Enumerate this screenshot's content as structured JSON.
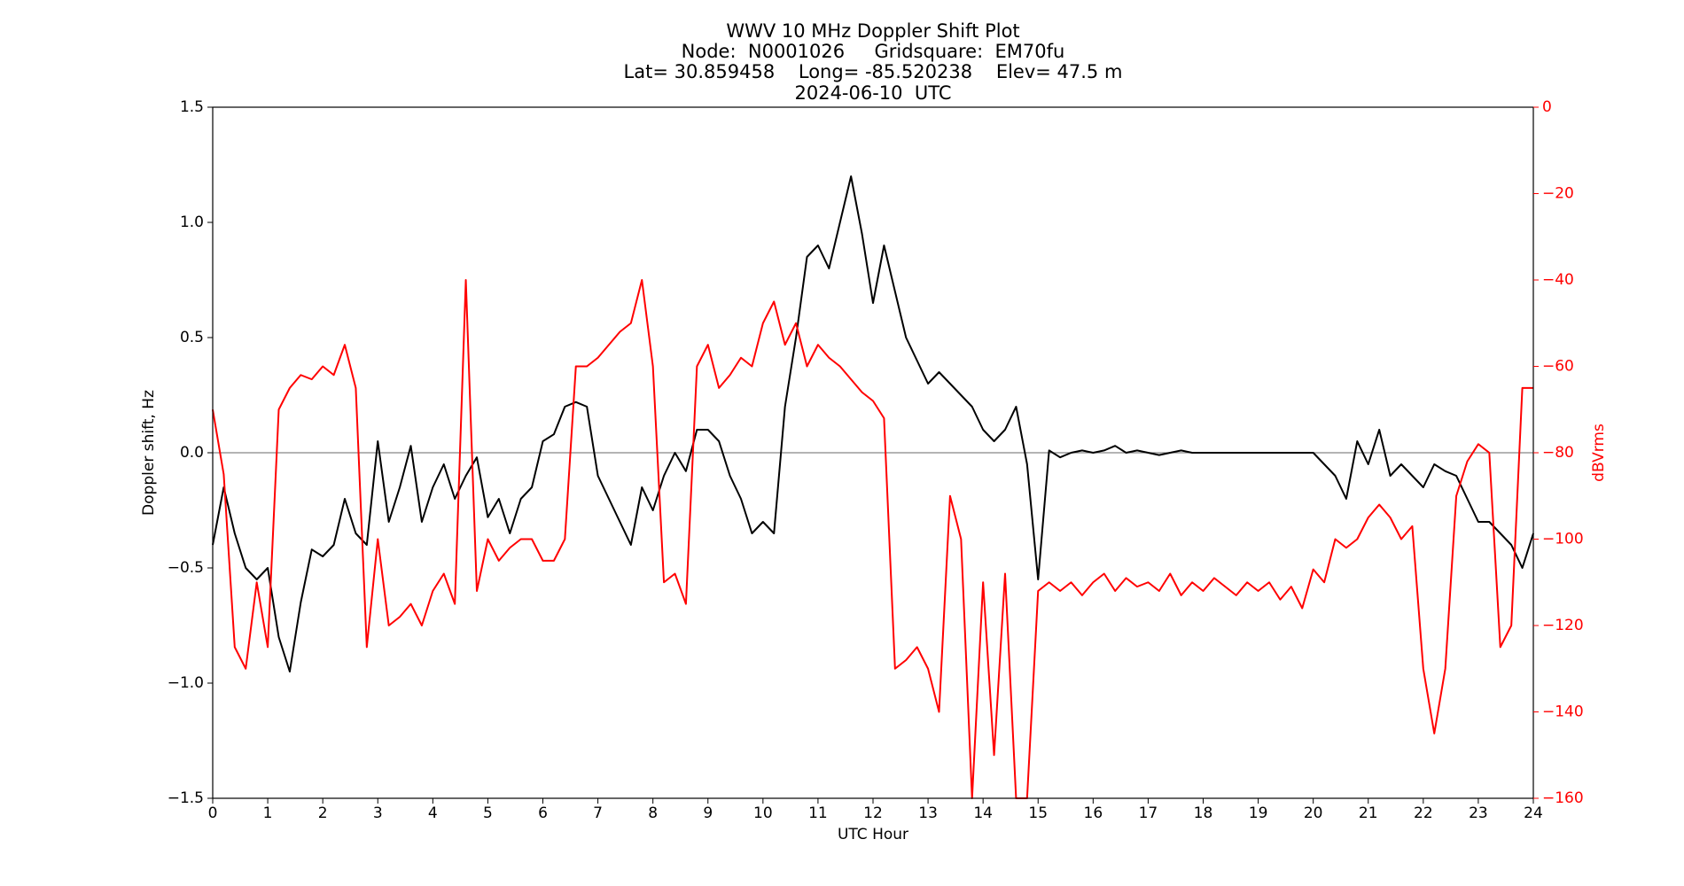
{
  "chart_data": {
    "type": "line",
    "title": "WWV 10 MHz Doppler Shift Plot",
    "subtitle": [
      "Node:  N0001026     Gridsquare:  EM70fu",
      "Lat= 30.859458    Long= -85.520238    Elev= 47.5 m",
      "2024-06-10  UTC"
    ],
    "xlabel": "UTC Hour",
    "ylabel": "Doppler shift, Hz",
    "y2label": "dBVrms",
    "x": [
      0,
      0.2,
      0.4,
      0.6,
      0.8,
      1,
      1.2,
      1.4,
      1.6,
      1.8,
      2,
      2.2,
      2.4,
      2.6,
      2.8,
      3,
      3.2,
      3.4,
      3.6,
      3.8,
      4,
      4.2,
      4.4,
      4.6,
      4.8,
      5,
      5.2,
      5.4,
      5.6,
      5.8,
      6,
      6.2,
      6.4,
      6.6,
      6.8,
      7,
      7.2,
      7.4,
      7.6,
      7.8,
      8,
      8.2,
      8.4,
      8.6,
      8.8,
      9,
      9.2,
      9.4,
      9.6,
      9.8,
      10,
      10.2,
      10.4,
      10.6,
      10.8,
      11,
      11.2,
      11.4,
      11.6,
      11.8,
      12,
      12.2,
      12.4,
      12.6,
      12.8,
      13,
      13.2,
      13.4,
      13.6,
      13.8,
      14,
      14.2,
      14.4,
      14.6,
      14.8,
      15,
      15.2,
      15.4,
      15.6,
      15.8,
      16,
      16.2,
      16.4,
      16.6,
      16.8,
      17,
      17.2,
      17.4,
      17.6,
      17.8,
      18,
      18.2,
      18.4,
      18.6,
      18.8,
      19,
      19.2,
      19.4,
      19.6,
      19.8,
      20,
      20.2,
      20.4,
      20.6,
      20.8,
      21,
      21.2,
      21.4,
      21.6,
      21.8,
      22,
      22.2,
      22.4,
      22.6,
      22.8,
      23,
      23.2,
      23.4,
      23.6,
      23.8,
      24
    ],
    "series": [
      {
        "name": "Doppler shift",
        "color": "#000000",
        "values": [
          -0.4,
          -0.15,
          -0.35,
          -0.5,
          -0.55,
          -0.5,
          -0.8,
          -0.95,
          -0.65,
          -0.42,
          -0.45,
          -0.4,
          -0.2,
          -0.35,
          -0.4,
          0.05,
          -0.3,
          -0.15,
          0.03,
          -0.3,
          -0.15,
          -0.05,
          -0.2,
          -0.1,
          -0.02,
          -0.28,
          -0.2,
          -0.35,
          -0.2,
          -0.15,
          0.05,
          0.08,
          0.2,
          0.22,
          0.2,
          -0.1,
          -0.2,
          -0.3,
          -0.4,
          -0.15,
          -0.25,
          -0.1,
          0,
          -0.08,
          0.1,
          0.1,
          0.05,
          -0.1,
          -0.2,
          -0.35,
          -0.3,
          -0.35,
          0.2,
          0.5,
          0.85,
          0.9,
          0.8,
          1.0,
          1.2,
          0.95,
          0.65,
          0.9,
          0.7,
          0.5,
          0.4,
          0.3,
          0.35,
          0.3,
          0.25,
          0.2,
          0.1,
          0.05,
          0.1,
          0.2,
          -0.05,
          -0.55,
          0.01,
          -0.02,
          0,
          0.01,
          0,
          0.01,
          0.03,
          0,
          0.01,
          0,
          -0.01,
          0,
          0.01,
          0,
          0,
          0,
          0,
          0,
          0,
          0,
          0,
          0,
          0,
          0,
          0,
          -0.05,
          -0.1,
          -0.2,
          0.05,
          -0.05,
          0.1,
          -0.1,
          -0.05,
          -0.1,
          -0.15,
          -0.05,
          -0.08,
          -0.1,
          -0.2,
          -0.3,
          -0.3,
          -0.35,
          -0.4,
          -0.5,
          -0.35
        ]
      },
      {
        "name": "dBVrms",
        "color": "#ff0000",
        "axis": "y2",
        "values": [
          -70,
          -85,
          -125,
          -130,
          -110,
          -125,
          -70,
          -65,
          -62,
          -63,
          -60,
          -62,
          -55,
          -65,
          -125,
          -100,
          -120,
          -118,
          -115,
          -120,
          -112,
          -108,
          -115,
          -40,
          -112,
          -100,
          -105,
          -102,
          -100,
          -100,
          -105,
          -105,
          -100,
          -60,
          -60,
          -58,
          -55,
          -52,
          -50,
          -40,
          -60,
          -110,
          -108,
          -115,
          -60,
          -55,
          -65,
          -62,
          -58,
          -60,
          -50,
          -45,
          -55,
          -50,
          -60,
          -55,
          -58,
          -60,
          -63,
          -66,
          -68,
          -72,
          -130,
          -128,
          -125,
          -130,
          -140,
          -90,
          -100,
          -160,
          -110,
          -150,
          -108,
          -160,
          -160,
          -112,
          -110,
          -112,
          -110,
          -113,
          -110,
          -108,
          -112,
          -109,
          -111,
          -110,
          -112,
          -108,
          -113,
          -110,
          -112,
          -109,
          -111,
          -113,
          -110,
          -112,
          -110,
          -114,
          -111,
          -116,
          -107,
          -110,
          -100,
          -102,
          -100,
          -95,
          -92,
          -95,
          -100,
          -97,
          -130,
          -145,
          -130,
          -90,
          -82,
          -78,
          -80,
          -125,
          -120,
          -65,
          -65
        ]
      }
    ],
    "hlines": [
      {
        "y": 0,
        "color": "#888888"
      }
    ],
    "xlim": [
      0,
      24
    ],
    "xticks": [
      0,
      1,
      2,
      3,
      4,
      5,
      6,
      7,
      8,
      9,
      10,
      11,
      12,
      13,
      14,
      15,
      16,
      17,
      18,
      19,
      20,
      21,
      22,
      23,
      24
    ],
    "ylim": [
      -1.5,
      1.5
    ],
    "yticks": [
      {
        "value": -1.5,
        "label": "−1.5"
      },
      {
        "value": -1,
        "label": "−1.0"
      },
      {
        "value": -0.5,
        "label": "−0.5"
      },
      {
        "value": 0,
        "label": "0.0"
      },
      {
        "value": 0.5,
        "label": "0.5"
      },
      {
        "value": 1,
        "label": "1.0"
      },
      {
        "value": 1.5,
        "label": "1.5"
      }
    ],
    "y2lim": [
      -160,
      0
    ],
    "y2ticks": [
      {
        "value": -160,
        "label": "−160"
      },
      {
        "value": -140,
        "label": "−140"
      },
      {
        "value": -120,
        "label": "−120"
      },
      {
        "value": -100,
        "label": "−100"
      },
      {
        "value": -80,
        "label": "−80"
      },
      {
        "value": -60,
        "label": "−60"
      },
      {
        "value": -40,
        "label": "−40"
      },
      {
        "value": -20,
        "label": "−20"
      },
      0
    ],
    "y2color": "#ff0000"
  }
}
